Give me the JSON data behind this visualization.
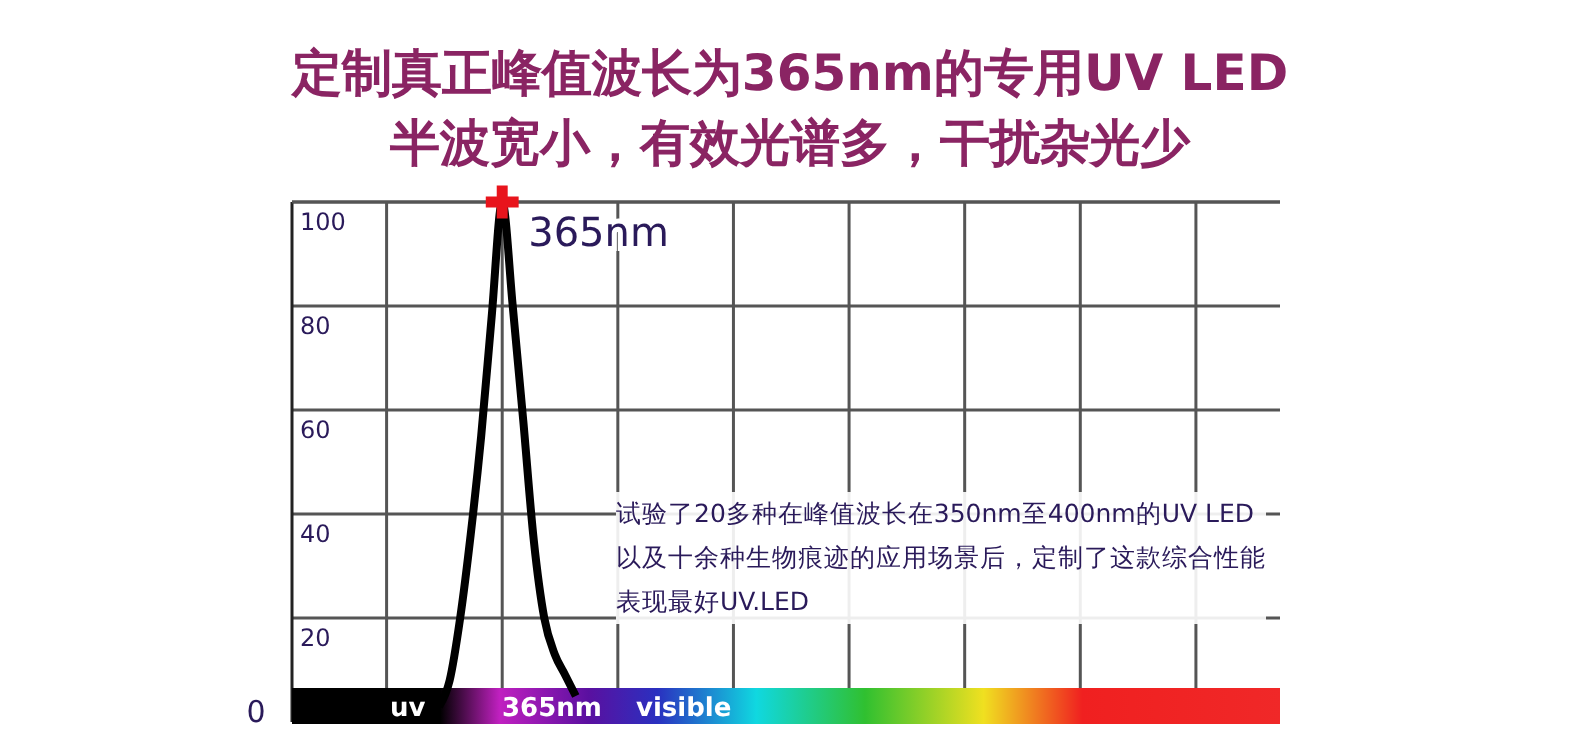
{
  "chart_data": {
    "type": "line",
    "title": "定制真正峰值波长为365nm的专用UV LED",
    "subtitle": "半波宽小，有效光谱多，干扰杂光少",
    "categories": [
      null,
      null,
      null,
      null,
      null,
      null,
      null,
      null,
      null,
      null,
      null,
      null,
      null,
      null,
      null,
      null,
      null,
      null,
      null,
      null,
      null,
      null,
      null,
      null,
      null,
      null,
      null,
      null,
      null,
      null,
      null,
      null,
      null,
      null,
      null,
      null,
      null,
      null,
      null,
      null,
      null,
      null,
      null,
      null,
      null,
      null,
      null,
      null,
      null,
      null,
      null,
      null,
      null,
      null,
      null,
      null,
      null,
      null,
      null,
      null,
      null,
      null,
      null,
      null,
      null,
      null,
      null,
      null,
      null,
      null,
      null,
      null,
      null,
      null,
      null,
      null,
      null,
      null,
      null,
      null,
      null,
      null,
      null,
      null,
      null,
      null,
      null,
      null,
      null,
      null,
      null,
      null,
      null,
      null,
      null
    ],
    "series": [
      {
        "color": "#000000",
        "values": [
          null,
          null,
          null,
          null,
          null,
          null,
          null,
          null,
          null,
          null,
          null,
          null,
          null,
          null,
          3,
          8,
          20,
          36,
          55,
          78,
          100,
          80,
          58,
          35,
          20,
          13,
          9,
          5,
          null,
          null,
          null,
          null,
          null,
          null,
          null,
          null,
          null,
          null,
          null,
          null,
          null,
          null,
          null,
          null,
          null,
          null,
          null,
          null,
          null,
          null,
          null,
          null,
          null,
          null,
          null,
          null,
          null,
          null,
          null,
          null,
          null,
          null,
          null,
          null,
          null,
          null,
          null,
          null,
          null,
          null,
          null,
          null,
          null,
          null,
          null,
          null,
          null,
          null,
          null,
          null,
          null,
          null,
          null,
          null,
          null,
          null,
          null,
          null,
          null,
          null,
          null,
          null,
          null,
          null,
          null
        ]
      },
      {
        "type": "scatter",
        "color": "#e8141c",
        "marker": "cross",
        "values": [
          null,
          null,
          null,
          null,
          null,
          null,
          null,
          null,
          null,
          null,
          null,
          null,
          null,
          null,
          null,
          null,
          null,
          null,
          null,
          null,
          100,
          null,
          null,
          null,
          null,
          null,
          null,
          null,
          null,
          null,
          null,
          null,
          null,
          null,
          null,
          null,
          null,
          null,
          null,
          null,
          null,
          null,
          null,
          null,
          null,
          null,
          null,
          null,
          null,
          null,
          null,
          null,
          null,
          null,
          null,
          null,
          null,
          null,
          null,
          null,
          null,
          null,
          null,
          null,
          null,
          null,
          null,
          null,
          null,
          null,
          null,
          null,
          null,
          null,
          null,
          null,
          null,
          null,
          null,
          null,
          null,
          null,
          null,
          null,
          null,
          null,
          null,
          null,
          null,
          null,
          null,
          null,
          null,
          null,
          null
        ]
      }
    ],
    "ylim": [
      0,
      100
    ],
    "yticks": [
      20,
      40,
      60,
      80,
      100
    ],
    "grid": true,
    "tick_labels": "y",
    "annotations": [
      "365nm",
      "uv",
      "365nm",
      "visible",
      "试验了20多种在峰值波长在350nm至400nm的UV LED以及十余种生物痕迹的应用场景后，定制了这款综合性能表现最好UV.LED",
      "0"
    ]
  }
}
